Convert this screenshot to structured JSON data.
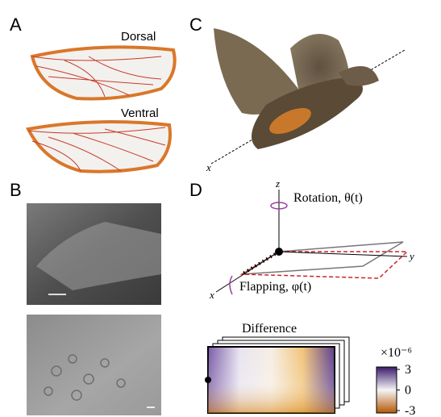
{
  "panels": {
    "A": {
      "label": "A",
      "dorsal": "Dorsal",
      "ventral": "Ventral"
    },
    "B": {
      "label": "B"
    },
    "C": {
      "label": "C",
      "axis": "x"
    },
    "D": {
      "label": "D",
      "z": "z",
      "rotation": "Rotation, θ(t)",
      "y": "y",
      "x": "x",
      "flapping": "Flapping, φ(t)",
      "difference": "Difference",
      "colorbar": {
        "scale": "×10⁻⁶",
        "lim": [
          -3,
          3
        ],
        "ticks": [
          3,
          0,
          -3
        ]
      }
    }
  }
}
